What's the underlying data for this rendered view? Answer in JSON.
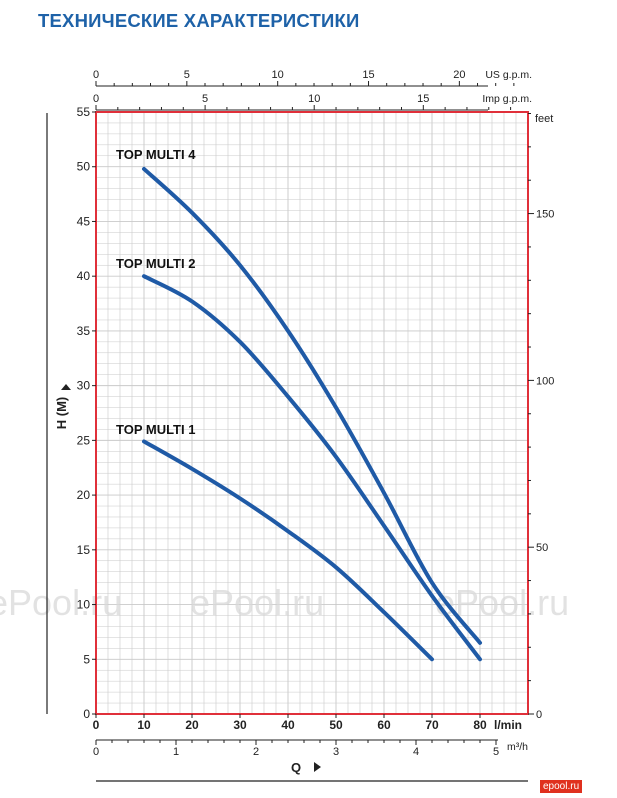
{
  "page_title": "ТЕХНИЧЕСКИЕ ХАРАКТЕРИСТИКИ",
  "watermark": "ePool.ru",
  "logo_text": "epool.ru",
  "colors": {
    "curve": "#1f5aa6",
    "frame": "#e0303a",
    "grid": "#c9c9c9",
    "title": "#1e62a8",
    "text": "#222222"
  },
  "chart_data": {
    "type": "line",
    "title": "",
    "xlabel": "l/min",
    "ylabel": "H  (M)",
    "qlabel": "Q",
    "xlim": [
      0,
      90
    ],
    "ylim": [
      0,
      55
    ],
    "grid": true,
    "legend": "labels placed next to curve starts",
    "x_ticks": [
      0,
      10,
      20,
      30,
      40,
      50,
      60,
      70,
      80
    ],
    "x_tick_labels": [
      "0",
      "10",
      "20",
      "30",
      "40",
      "50",
      "60",
      "70",
      "80"
    ],
    "x_unit_label": "l/min",
    "y_ticks": [
      0,
      5,
      10,
      15,
      20,
      25,
      30,
      35,
      40,
      45,
      50,
      55
    ],
    "y_tick_labels": [
      "0",
      "5",
      "10",
      "15",
      "20",
      "25",
      "30",
      "35",
      "40",
      "45",
      "50",
      "55"
    ],
    "right_axis": {
      "label": "feet",
      "ticks": [
        0,
        50,
        100,
        150
      ],
      "tick_labels": [
        "0",
        "50",
        "100",
        "150"
      ],
      "m_per_unit": 0.3048
    },
    "top_axes": [
      {
        "label": "US g.p.m.",
        "lpm_per_unit": 3.785,
        "ticks": [
          0,
          5,
          10,
          15,
          20
        ],
        "tick_labels": [
          "0",
          "5",
          "10",
          "15",
          "20"
        ],
        "minor_step": 1
      },
      {
        "label": "Imp g.p.m.",
        "lpm_per_unit": 4.546,
        "ticks": [
          0,
          5,
          10,
          15
        ],
        "tick_labels": [
          "0",
          "5",
          "10",
          "15"
        ],
        "minor_step": 1
      }
    ],
    "bottom_axis": {
      "label": "m³/h",
      "lpm_per_unit": 16.667,
      "ticks": [
        0,
        1,
        2,
        3,
        4,
        5
      ],
      "tick_labels": [
        "0",
        "1",
        "2",
        "3",
        "4",
        "5"
      ],
      "minor_step": 0.2
    },
    "series": [
      {
        "name": "TOP MULTI 4",
        "x": [
          10,
          20,
          30,
          40,
          50,
          60,
          70,
          80
        ],
        "y": [
          49.8,
          45.8,
          41,
          35,
          28,
          20.2,
          12,
          6.5
        ]
      },
      {
        "name": "TOP MULTI 2",
        "x": [
          10,
          20,
          30,
          40,
          50,
          60,
          70,
          80
        ],
        "y": [
          40,
          37.7,
          34,
          29,
          23.5,
          17.2,
          10.8,
          5
        ]
      },
      {
        "name": "TOP MULTI 1",
        "x": [
          10,
          20,
          30,
          40,
          50,
          60,
          70
        ],
        "y": [
          24.9,
          22.4,
          19.7,
          16.7,
          13.4,
          9.3,
          5
        ]
      }
    ]
  }
}
